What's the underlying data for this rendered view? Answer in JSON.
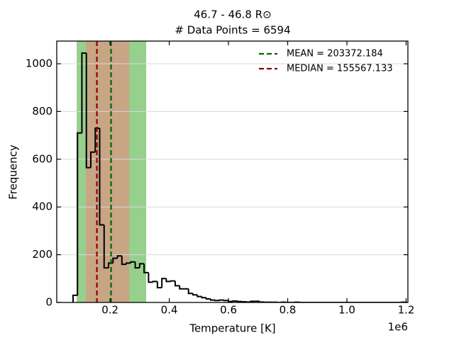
{
  "chart_data": {
    "type": "histogram",
    "title": "46.7 - 46.8 R⊙",
    "subtitle": "# Data Points = 6594",
    "x_label": "Temperature [K]",
    "y_label": "Frequency",
    "x_offset_label": "1e6",
    "bins": [
      75000,
      90000,
      105000,
      120000,
      135000,
      150000,
      165000,
      180000,
      195000,
      210000,
      225000,
      240000,
      255000,
      270000,
      285000,
      300000,
      315000,
      330000,
      345000,
      360000,
      375000,
      390000,
      405000,
      420000,
      435000,
      450000,
      465000,
      480000,
      495000,
      510000,
      525000,
      540000,
      555000,
      570000,
      585000,
      600000,
      615000,
      630000,
      645000,
      660000,
      675000,
      690000,
      705000,
      720000,
      735000,
      750000,
      765000,
      780000,
      795000,
      810000,
      825000,
      840000,
      855000,
      870000,
      885000,
      900000,
      915000,
      930000,
      945000,
      960000,
      975000,
      990000,
      1005000,
      1020000,
      1035000,
      1050000,
      1065000,
      1080000,
      1095000,
      1110000,
      1125000,
      1140000,
      1155000,
      1170000,
      1185000,
      1200000
    ],
    "values": [
      30,
      710,
      1045,
      565,
      630,
      730,
      325,
      145,
      165,
      185,
      195,
      160,
      165,
      170,
      145,
      162,
      125,
      85,
      88,
      62,
      100,
      88,
      90,
      70,
      57,
      57,
      38,
      32,
      25,
      20,
      15,
      10,
      8,
      10,
      8,
      4,
      6,
      4,
      3,
      2,
      5,
      5,
      2,
      1,
      1,
      1,
      0,
      1,
      0,
      0,
      1,
      0,
      0,
      0,
      0,
      0,
      0,
      0,
      0,
      0,
      0,
      0,
      0,
      0,
      0,
      0,
      0,
      0,
      0,
      0,
      0,
      0,
      0,
      0,
      1
    ],
    "color": "#000000",
    "spans": [
      {
        "xmin": 87400,
        "xmax": 322000,
        "color": "#97cf8d"
      },
      {
        "xmin": 118600,
        "xmax": 264700,
        "color": "#c7a585"
      }
    ],
    "vlines": [
      {
        "label": "MEAN = 203372.184",
        "value": 203372.184,
        "color": "#006400"
      },
      {
        "label": "MEDIAN = 155567.133",
        "value": 155567.133,
        "color": "#8b0000"
      }
    ],
    "xlim": [
      20000,
      1206000
    ],
    "ylim": [
      0,
      1095
    ],
    "xticks": [
      {
        "value": 200000,
        "label": "0.2"
      },
      {
        "value": 400000,
        "label": "0.4"
      },
      {
        "value": 600000,
        "label": "0.6"
      },
      {
        "value": 800000,
        "label": "0.8"
      },
      {
        "value": 1000000,
        "label": "1.0"
      },
      {
        "value": 1200000,
        "label": "1.2"
      }
    ],
    "yticks": [
      0,
      200,
      400,
      600,
      800,
      1000
    ],
    "grid": true,
    "legend": "upper right"
  }
}
